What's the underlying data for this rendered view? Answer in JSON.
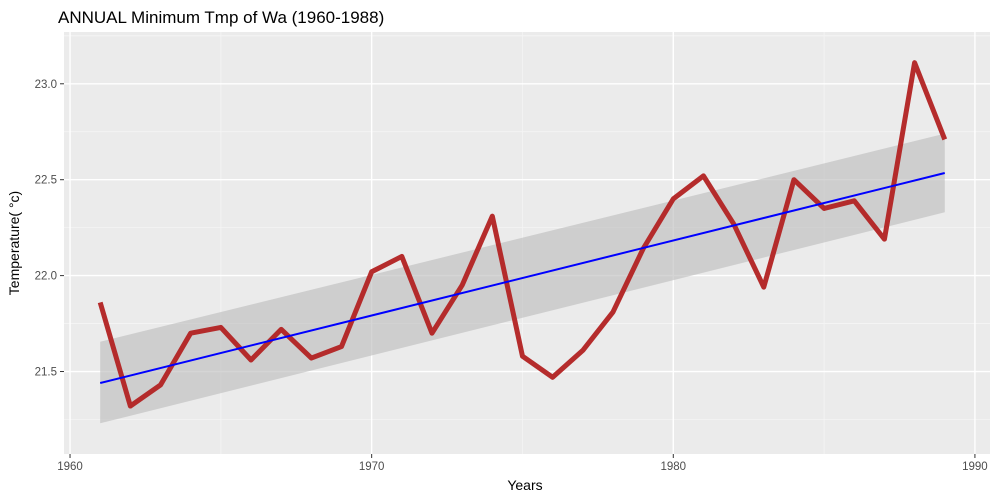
{
  "chart_data": {
    "type": "line",
    "title": "ANNUAL Minimum Tmp of Wa (1960-1988)",
    "xlabel": "Years",
    "ylabel": "Temperature( °c)",
    "xlim": [
      1959.8,
      1990.5
    ],
    "ylim": [
      21.07,
      23.27
    ],
    "x_ticks": [
      1960,
      1970,
      1980,
      1990
    ],
    "y_ticks": [
      21.5,
      22.0,
      22.5,
      23.0
    ],
    "y_tick_labels": [
      "21.5",
      "22.0",
      "22.5",
      "23.0"
    ],
    "grid": true,
    "legend": "none",
    "series": [
      {
        "x": [
          1961,
          1962,
          1963,
          1964,
          1965,
          1966,
          1967,
          1968,
          1969,
          1970,
          1971,
          1972,
          1973,
          1974,
          1975,
          1976,
          1977,
          1978,
          1979,
          1980,
          1981,
          1982,
          1983,
          1984,
          1985,
          1986,
          1987,
          1988,
          1989
        ],
        "y": [
          21.86,
          21.32,
          21.43,
          21.7,
          21.73,
          21.56,
          21.72,
          21.57,
          21.63,
          22.02,
          22.1,
          21.7,
          21.95,
          22.31,
          21.58,
          21.47,
          21.61,
          21.81,
          22.14,
          22.4,
          22.52,
          22.27,
          21.94,
          22.5,
          22.35,
          22.39,
          22.19,
          23.11,
          22.71
        ],
        "color": "#b22222"
      }
    ],
    "trend": {
      "type": "linear",
      "x": [
        1961,
        1989
      ],
      "y": [
        21.44,
        22.535
      ],
      "ci_lower": [
        21.23,
        22.33
      ],
      "ci_upper": [
        21.655,
        22.74
      ],
      "color": "#0000ff",
      "band_color": "#bebebe"
    },
    "colors": {
      "panel_background": "#ebebeb",
      "grid_major": "#ffffff",
      "grid_minor": "#f5f5f5"
    }
  }
}
